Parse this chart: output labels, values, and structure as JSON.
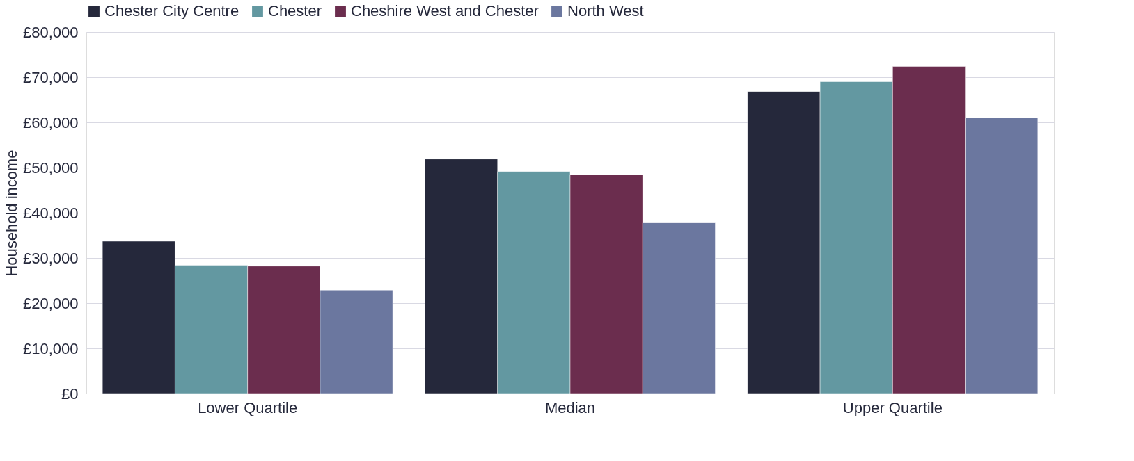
{
  "chart_data": {
    "type": "bar",
    "ylabel": "Household income",
    "categories": [
      "Lower Quartile",
      "Median",
      "Upper Quartile"
    ],
    "series": [
      {
        "name": "Chester City Centre",
        "color": "#25283b",
        "values": [
          33700,
          51900,
          66800
        ]
      },
      {
        "name": "Chester",
        "color": "#6398a1",
        "values": [
          28400,
          49100,
          69000
        ]
      },
      {
        "name": "Cheshire West and Chester",
        "color": "#6b2d4e",
        "values": [
          28200,
          48400,
          72400
        ]
      },
      {
        "name": "North West",
        "color": "#6b779f",
        "values": [
          22900,
          37900,
          61000
        ]
      }
    ],
    "ylim": [
      0,
      80000
    ],
    "yticks": [
      {
        "value": 0,
        "label": "£0"
      },
      {
        "value": 10000,
        "label": "£10,000"
      },
      {
        "value": 20000,
        "label": "£20,000"
      },
      {
        "value": 30000,
        "label": "£30,000"
      },
      {
        "value": 40000,
        "label": "£40,000"
      },
      {
        "value": 50000,
        "label": "£50,000"
      },
      {
        "value": 60000,
        "label": "£60,000"
      },
      {
        "value": 70000,
        "label": "£70,000"
      },
      {
        "value": 80000,
        "label": "£80,000"
      }
    ],
    "grid": "y",
    "legend": "top"
  }
}
